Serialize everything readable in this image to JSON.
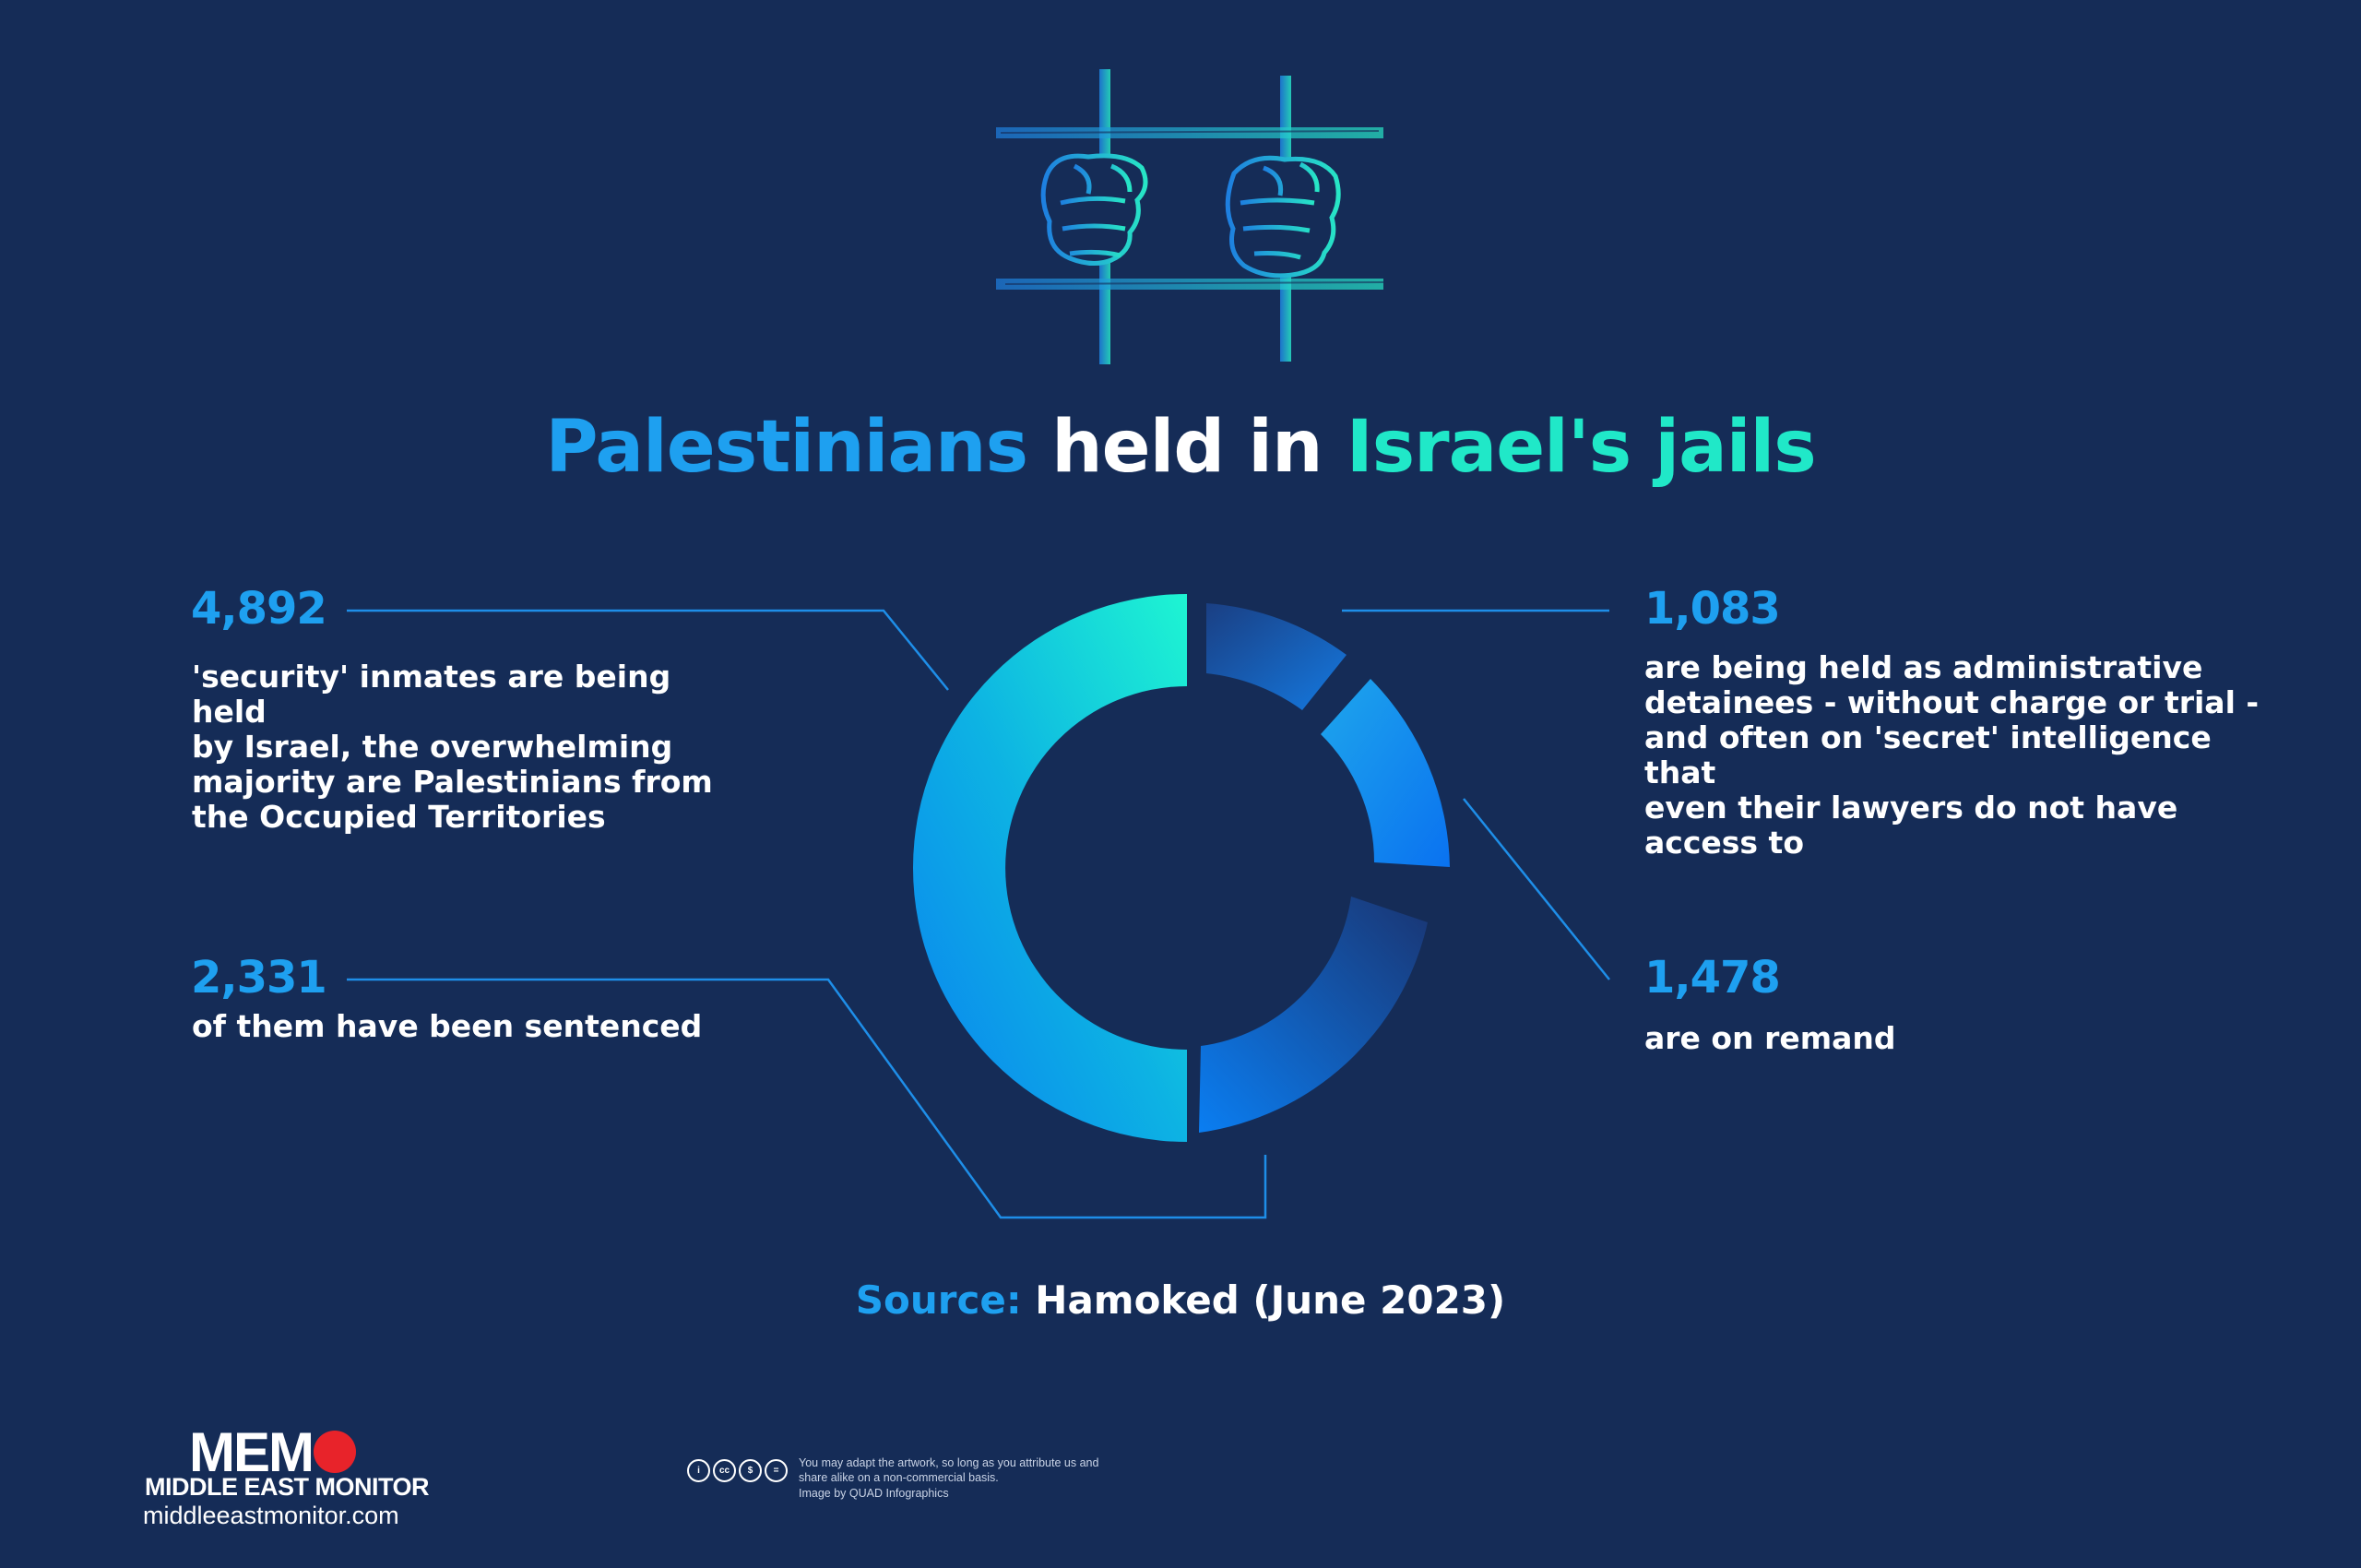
{
  "title": {
    "part1": "Palestinians",
    "part2": " held in ",
    "part3": "Israel's jails"
  },
  "stats": {
    "security": {
      "value": "4,892",
      "lines": [
        "'security' inmates are being held",
        "by Israel, the overwhelming",
        "majority are Palestinians from",
        "the Occupied Territories"
      ]
    },
    "sentenced": {
      "value": "2,331",
      "lines": [
        "of them have been sentenced"
      ]
    },
    "administrative": {
      "value": "1,083",
      "lines": [
        "are being held as administrative",
        "detainees - without charge or trial -",
        "and often on 'secret' intelligence that",
        "even their lawyers do not have",
        "access to"
      ]
    },
    "remand": {
      "value": "1,478",
      "lines": [
        "are on remand"
      ]
    }
  },
  "source": {
    "label": "Source:",
    "text": " Hamoked (June 2023)"
  },
  "logo": {
    "word": "MEM",
    "subtitle": "MIDDLE EAST MONITOR",
    "url": "middleeastmonitor.com"
  },
  "license": {
    "icons": [
      "i",
      "cc",
      "$",
      "="
    ],
    "text": "You may adapt the artwork, so long as you attribute us and share alike on a non-commercial basis.",
    "credit": "Image by QUAD Infographics"
  },
  "colors": {
    "background": "#152c57",
    "accent_blue": "#1ea0f0",
    "accent_teal": "#20e8c8",
    "logo_red": "#e8232a"
  },
  "icon_names": {
    "illustration": "fists-on-prison-bars-icon"
  }
}
